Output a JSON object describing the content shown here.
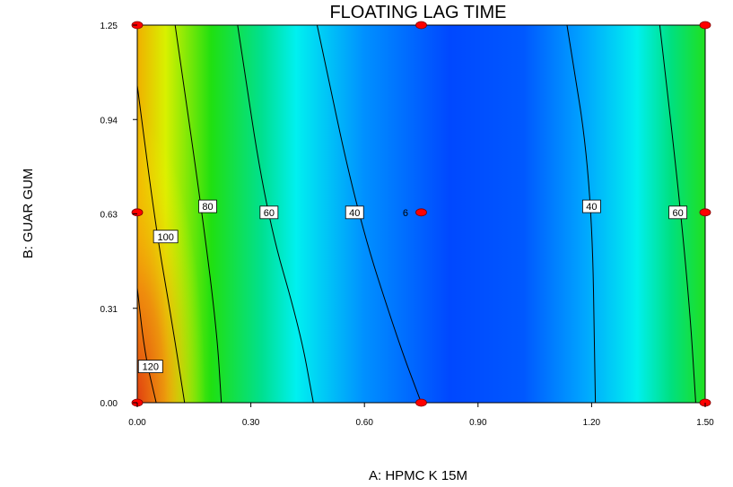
{
  "chart_data": {
    "type": "contour",
    "title": "FLOATING LAG TIME",
    "xlabel": "A: HPMC K 15M",
    "ylabel": "B: GUAR GUM",
    "xlim": [
      0.0,
      1.5
    ],
    "ylim": [
      0.0,
      1.25
    ],
    "x_ticks": [
      "0.00",
      "0.30",
      "0.60",
      "0.90",
      "1.20",
      "1.50"
    ],
    "y_ticks": [
      "0.00",
      "0.31",
      "0.63",
      "0.94",
      "1.25"
    ],
    "contours": [
      {
        "label": "120",
        "points": [
          [
            0.0,
            0.38
          ],
          [
            0.02,
            0.16
          ],
          [
            0.05,
            0.0
          ]
        ],
        "label_at": [
          0.035,
          0.12
        ]
      },
      {
        "label": "100",
        "points": [
          [
            0.0,
            1.05
          ],
          [
            0.05,
            0.57
          ],
          [
            0.09,
            0.28
          ],
          [
            0.125,
            0.0
          ]
        ],
        "label_at": [
          0.075,
          0.55
        ]
      },
      {
        "label": "80",
        "points": [
          [
            0.1,
            1.25
          ],
          [
            0.17,
            0.64
          ],
          [
            0.21,
            0.24
          ],
          [
            0.222,
            0.0
          ]
        ],
        "label_at": [
          0.186,
          0.65
        ]
      },
      {
        "label": "60",
        "points": [
          [
            0.265,
            1.25
          ],
          [
            0.34,
            0.63
          ],
          [
            0.43,
            0.24
          ],
          [
            0.465,
            0.0
          ]
        ],
        "label_at": [
          0.348,
          0.63
        ]
      },
      {
        "label": "40",
        "points": [
          [
            0.475,
            1.25
          ],
          [
            0.58,
            0.63
          ],
          [
            0.69,
            0.2
          ],
          [
            0.75,
            0.0
          ]
        ],
        "label_at": [
          0.574,
          0.63
        ]
      },
      {
        "label": "40",
        "points": [
          [
            1.135,
            1.25
          ],
          [
            1.2,
            0.74
          ],
          [
            1.21,
            0.0
          ]
        ],
        "label_at": [
          1.2,
          0.65
        ]
      },
      {
        "label": "60",
        "points": [
          [
            1.38,
            1.25
          ],
          [
            1.43,
            0.7
          ],
          [
            1.46,
            0.3
          ],
          [
            1.475,
            0.0
          ]
        ],
        "label_at": [
          1.428,
          0.63
        ]
      }
    ],
    "design_points": [
      {
        "x": 0.0,
        "y": 0.0
      },
      {
        "x": 0.0,
        "y": 0.63
      },
      {
        "x": 0.0,
        "y": 1.25
      },
      {
        "x": 0.75,
        "y": 0.0
      },
      {
        "x": 0.75,
        "y": 0.63
      },
      {
        "x": 0.75,
        "y": 1.25
      },
      {
        "x": 1.5,
        "y": 0.0
      },
      {
        "x": 1.5,
        "y": 0.63
      },
      {
        "x": 1.5,
        "y": 1.25
      }
    ],
    "center_point_label": "6",
    "center_point_label_at": [
      0.72,
      0.63
    ],
    "colors": {
      "high": "#e06010",
      "mid_high": "#ffff00",
      "mid": "#00d000",
      "mid_low": "#00f0f0",
      "low": "#0050ff",
      "point": "#ff0000"
    }
  }
}
